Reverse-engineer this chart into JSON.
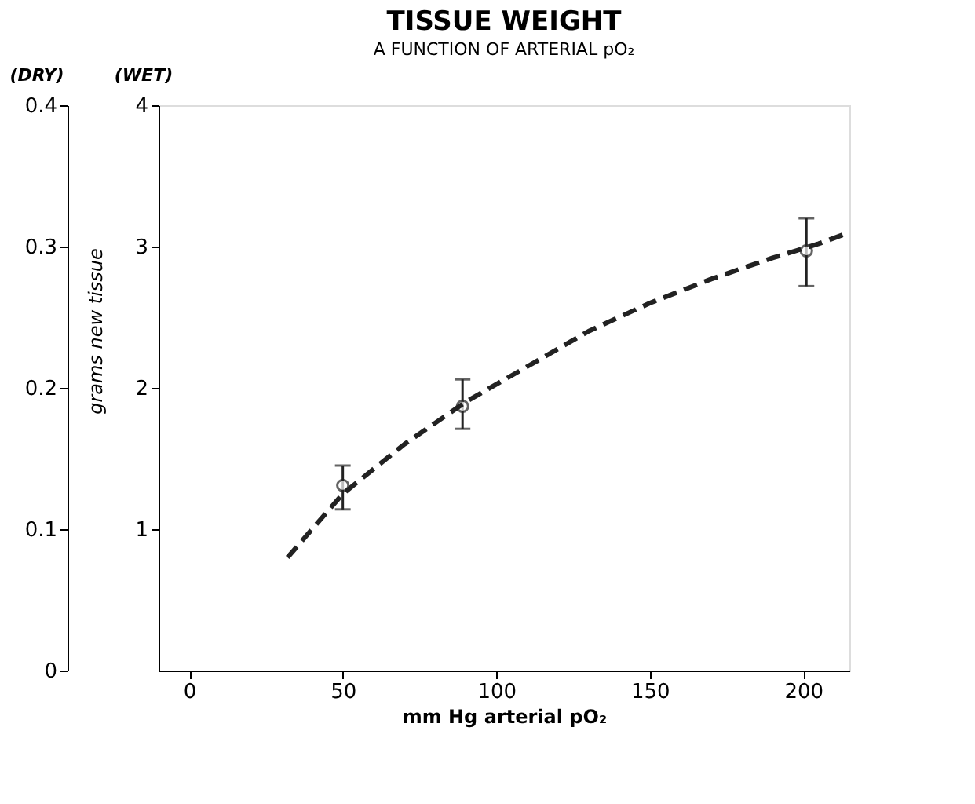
{
  "chart_data": {
    "type": "scatter",
    "title": "TISSUE WEIGHT",
    "subtitle": "A FUNCTION OF ARTERIAL pO₂",
    "xlabel": "mm Hg arterial pO₂",
    "ylabel": "(DRY)",
    "y2label": "(WET)",
    "annotations": [
      "grams new tissue"
    ],
    "xlim": [
      -10,
      215
    ],
    "xticks": [
      0,
      50,
      100,
      150,
      200
    ],
    "ylim": [
      0,
      0.4
    ],
    "yticks": [
      {
        "value": 0,
        "label": "0"
      },
      0.1,
      0.2,
      0.3,
      0.4
    ],
    "y2lim": [
      0,
      4
    ],
    "y2ticks": [
      1,
      2,
      3,
      4
    ],
    "grid": false,
    "series": [
      {
        "color": "#222222",
        "marker": "circle",
        "x": [
          50,
          89,
          201
        ],
        "values": [
          0.131,
          0.187,
          0.297
        ],
        "errors": [
          [
            0.114,
            0.145
          ],
          [
            0.171,
            0.206
          ],
          [
            0.272,
            0.32
          ]
        ]
      },
      {
        "type": "line",
        "color": "#222222",
        "line_style": "dashed",
        "marker": "none",
        "x": [
          32,
          50,
          70,
          90,
          110,
          130,
          150,
          170,
          190,
          205,
          215
        ],
        "values": [
          0.08,
          0.125,
          0.16,
          0.19,
          0.215,
          0.24,
          0.26,
          0.277,
          0.292,
          0.302,
          0.31
        ]
      }
    ]
  }
}
